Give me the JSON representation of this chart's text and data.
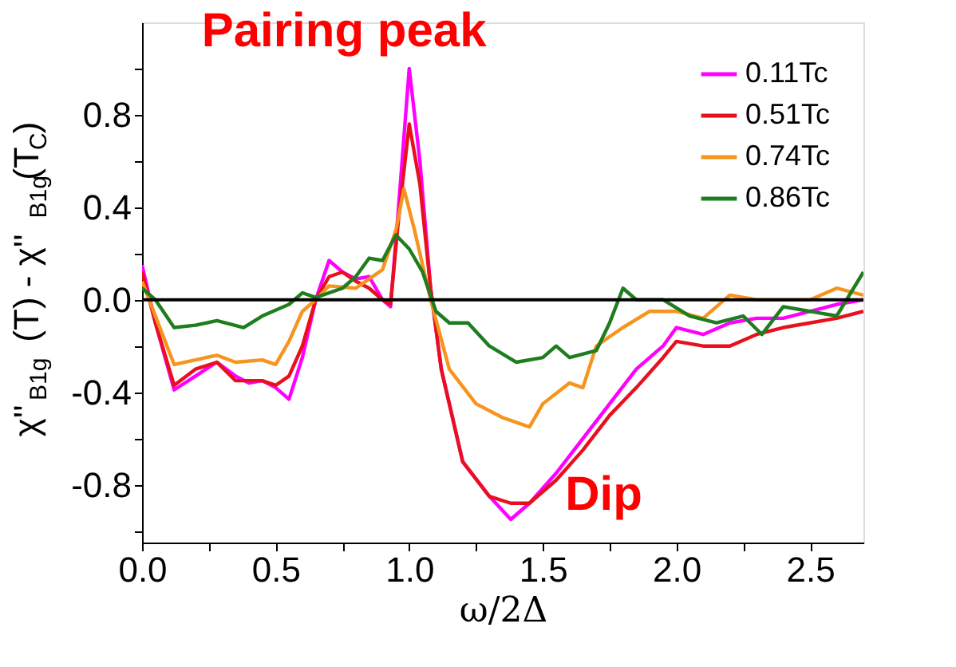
{
  "chart_data": {
    "type": "line",
    "xlabel": "ω/2Δ",
    "ylabel": "χ''$_{B1g}$(T) - χ''$_{B1g}$(T$_{C}$)",
    "xlim": [
      0,
      2.7
    ],
    "ylim": [
      -1.05,
      1.2
    ],
    "xticks": [
      {
        "value": 0,
        "label": "0.0"
      },
      {
        "value": 0.25,
        "label": null
      },
      0.5,
      {
        "value": 0.75,
        "label": null
      },
      {
        "value": 1,
        "label": "1.0"
      },
      {
        "value": 1.25,
        "label": null
      },
      1.5,
      {
        "value": 1.75,
        "label": null
      },
      {
        "value": 2,
        "label": "2.0"
      },
      {
        "value": 2.25,
        "label": null
      },
      2.5
    ],
    "yticks": [
      {
        "value": -1.0,
        "label": null
      },
      -0.8,
      {
        "value": -0.6,
        "label": null
      },
      -0.4,
      {
        "value": -0.2,
        "label": null
      },
      {
        "value": 0,
        "label": "0.0"
      },
      {
        "value": 0.2,
        "label": null
      },
      0.4,
      {
        "value": 0.6,
        "label": null
      },
      0.8,
      {
        "value": 1.0,
        "label": null
      }
    ],
    "grid": false,
    "legend": "top right",
    "line_style": "solid",
    "marker": "none",
    "ref_lines": [
      {
        "axis": "y",
        "value": 0,
        "color": "#000000"
      }
    ],
    "annotations": [
      "Pairing peak",
      "Dip"
    ],
    "series": [
      {
        "name": "0.11Tc",
        "color": "#ff00ff",
        "x": [
          0.0,
          0.05,
          0.12,
          0.2,
          0.28,
          0.35,
          0.4,
          0.45,
          0.5,
          0.55,
          0.6,
          0.65,
          0.7,
          0.75,
          0.8,
          0.85,
          0.9,
          0.93,
          0.96,
          1.0,
          1.04,
          1.08,
          1.12,
          1.2,
          1.3,
          1.38,
          1.45,
          1.55,
          1.65,
          1.75,
          1.85,
          1.95,
          2.0,
          2.1,
          2.2,
          2.3,
          2.4,
          2.5,
          2.6,
          2.7
        ],
        "values": [
          0.15,
          -0.1,
          -0.39,
          -0.33,
          -0.27,
          -0.33,
          -0.36,
          -0.35,
          -0.38,
          -0.43,
          -0.25,
          0.0,
          0.17,
          0.12,
          0.09,
          0.1,
          0.0,
          -0.03,
          0.4,
          1.0,
          0.6,
          0.05,
          -0.3,
          -0.7,
          -0.85,
          -0.95,
          -0.88,
          -0.75,
          -0.6,
          -0.45,
          -0.3,
          -0.2,
          -0.12,
          -0.15,
          -0.1,
          -0.08,
          -0.08,
          -0.05,
          -0.02,
          0.0
        ]
      },
      {
        "name": "0.51Tc",
        "color": "#e8101c",
        "x": [
          0.0,
          0.05,
          0.12,
          0.2,
          0.28,
          0.35,
          0.4,
          0.45,
          0.5,
          0.55,
          0.6,
          0.65,
          0.7,
          0.75,
          0.8,
          0.85,
          0.9,
          0.93,
          0.96,
          1.0,
          1.04,
          1.08,
          1.12,
          1.2,
          1.3,
          1.38,
          1.45,
          1.55,
          1.65,
          1.75,
          1.85,
          1.95,
          2.0,
          2.1,
          2.2,
          2.3,
          2.4,
          2.5,
          2.6,
          2.7
        ],
        "values": [
          0.12,
          -0.1,
          -0.37,
          -0.3,
          -0.27,
          -0.35,
          -0.35,
          -0.35,
          -0.37,
          -0.33,
          -0.2,
          0.0,
          0.1,
          0.12,
          0.08,
          0.05,
          0.0,
          -0.02,
          0.35,
          0.76,
          0.5,
          0.05,
          -0.3,
          -0.7,
          -0.85,
          -0.88,
          -0.88,
          -0.78,
          -0.65,
          -0.5,
          -0.38,
          -0.25,
          -0.18,
          -0.2,
          -0.2,
          -0.15,
          -0.12,
          -0.1,
          -0.08,
          -0.05
        ]
      },
      {
        "name": "0.74Tc",
        "color": "#f7941d",
        "x": [
          0.0,
          0.12,
          0.2,
          0.28,
          0.35,
          0.45,
          0.5,
          0.55,
          0.6,
          0.65,
          0.7,
          0.8,
          0.85,
          0.9,
          0.95,
          0.98,
          1.02,
          1.08,
          1.15,
          1.25,
          1.35,
          1.45,
          1.5,
          1.6,
          1.65,
          1.7,
          1.8,
          1.9,
          2.0,
          2.1,
          2.2,
          2.3,
          2.4,
          2.5,
          2.6,
          2.7
        ],
        "values": [
          0.08,
          -0.28,
          -0.26,
          -0.24,
          -0.27,
          -0.26,
          -0.28,
          -0.18,
          -0.05,
          0.0,
          0.06,
          0.05,
          0.09,
          0.13,
          0.3,
          0.48,
          0.3,
          0.0,
          -0.3,
          -0.45,
          -0.51,
          -0.55,
          -0.45,
          -0.36,
          -0.38,
          -0.2,
          -0.12,
          -0.05,
          -0.05,
          -0.08,
          0.02,
          0.0,
          0.0,
          0.0,
          0.05,
          0.02
        ]
      },
      {
        "name": "0.86Tc",
        "color": "#1e7d1e",
        "x": [
          0.0,
          0.05,
          0.12,
          0.2,
          0.28,
          0.38,
          0.45,
          0.55,
          0.6,
          0.65,
          0.75,
          0.8,
          0.85,
          0.9,
          0.95,
          1.0,
          1.05,
          1.1,
          1.15,
          1.22,
          1.3,
          1.4,
          1.5,
          1.55,
          1.6,
          1.7,
          1.75,
          1.8,
          1.85,
          1.95,
          2.05,
          2.15,
          2.25,
          2.32,
          2.4,
          2.5,
          2.6,
          2.7
        ],
        "values": [
          0.05,
          0.0,
          -0.12,
          -0.11,
          -0.09,
          -0.12,
          -0.07,
          -0.02,
          0.03,
          0.01,
          0.05,
          0.1,
          0.18,
          0.17,
          0.28,
          0.22,
          0.12,
          -0.05,
          -0.1,
          -0.1,
          -0.2,
          -0.27,
          -0.25,
          -0.2,
          -0.25,
          -0.22,
          -0.1,
          0.05,
          0.0,
          0.0,
          -0.07,
          -0.1,
          -0.07,
          -0.15,
          -0.03,
          -0.05,
          -0.07,
          0.12
        ]
      }
    ]
  }
}
